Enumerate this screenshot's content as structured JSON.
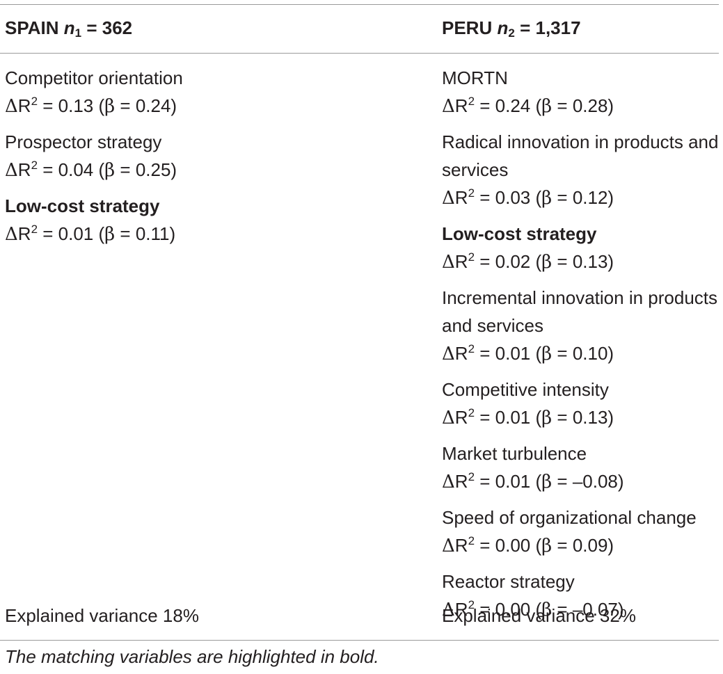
{
  "header": {
    "left": {
      "country": "SPAIN",
      "n_symbol": "n",
      "n_subscript": "1",
      "n_value": "= 362"
    },
    "right": {
      "country": "PERU",
      "n_symbol": "n",
      "n_subscript": "2",
      "n_value": "= 1,317"
    }
  },
  "spain": {
    "entries": [
      {
        "name": "Competitor orientation",
        "bold": false,
        "delta_r2": "0.13",
        "beta": "0.24"
      },
      {
        "name": "Prospector strategy",
        "bold": false,
        "delta_r2": "0.04",
        "beta": "0.25"
      },
      {
        "name": "Low-cost strategy",
        "bold": true,
        "delta_r2": "0.01",
        "beta": "0.11"
      }
    ],
    "explained_variance": "Explained variance 18%"
  },
  "peru": {
    "entries": [
      {
        "name": "MORTN",
        "bold": false,
        "delta_r2": "0.24",
        "beta": "0.28"
      },
      {
        "name": "Radical innovation in products and services",
        "bold": false,
        "delta_r2": "0.03",
        "beta": "0.12"
      },
      {
        "name": "Low-cost strategy",
        "bold": true,
        "delta_r2": "0.02",
        "beta": "0.13"
      },
      {
        "name": "Incremental innovation in products and services",
        "bold": false,
        "delta_r2": "0.01",
        "beta": "0.10"
      },
      {
        "name": "Competitive intensity",
        "bold": false,
        "delta_r2": "0.01",
        "beta": "0.13"
      },
      {
        "name": "Market turbulence",
        "bold": false,
        "delta_r2": "0.01",
        "beta": "–0.08"
      },
      {
        "name": "Speed of organizational change",
        "bold": false,
        "delta_r2": "0.00",
        "beta": "0.09"
      },
      {
        "name": "Reactor strategy",
        "bold": false,
        "delta_r2": "0.00",
        "beta": "–0.07"
      }
    ],
    "explained_variance": "Explained variance 32%"
  },
  "footnote": "The matching variables are highlighted in bold.",
  "symbols": {
    "delta": "Δ",
    "r": "R",
    "r_exp": "2",
    "beta": "β"
  }
}
